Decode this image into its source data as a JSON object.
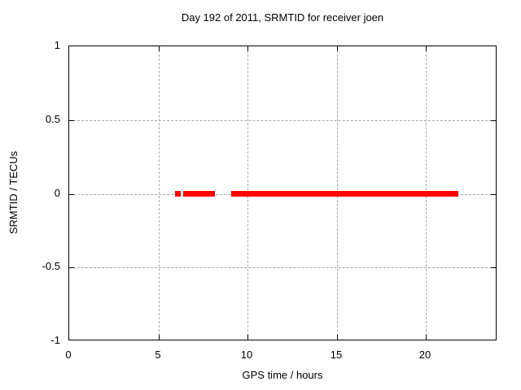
{
  "chart_data": {
    "type": "scatter",
    "title": "Day 192 of 2011, SRMTID for receiver joen",
    "xlabel": "GPS time / hours",
    "ylabel": "SRMTID / TECUs",
    "xlim": [
      0,
      24
    ],
    "ylim": [
      -1,
      1
    ],
    "xtick_values": [
      0,
      5,
      10,
      15,
      20
    ],
    "xtick_labels": [
      "0",
      "5",
      "10",
      "15",
      "20"
    ],
    "ytick_values": [
      1,
      0.5,
      0,
      -0.5,
      -1
    ],
    "ytick_labels": [
      "1",
      "0.5",
      "0",
      "-0.5",
      "-1"
    ],
    "grid": true,
    "legend": false,
    "series": [
      {
        "name": "SRMTID",
        "color": "#ff0000",
        "style": "thick horizontal point band",
        "y_value": 0,
        "segments_x_hours": [
          [
            5.93,
            6.25
          ],
          [
            6.38,
            8.17
          ],
          [
            9.07,
            21.82
          ]
        ]
      }
    ]
  },
  "colors": {
    "background": "#ffffff",
    "border": "#000000",
    "grid": "#a8a8a8",
    "text": "#000000",
    "series": "#ff0000"
  }
}
